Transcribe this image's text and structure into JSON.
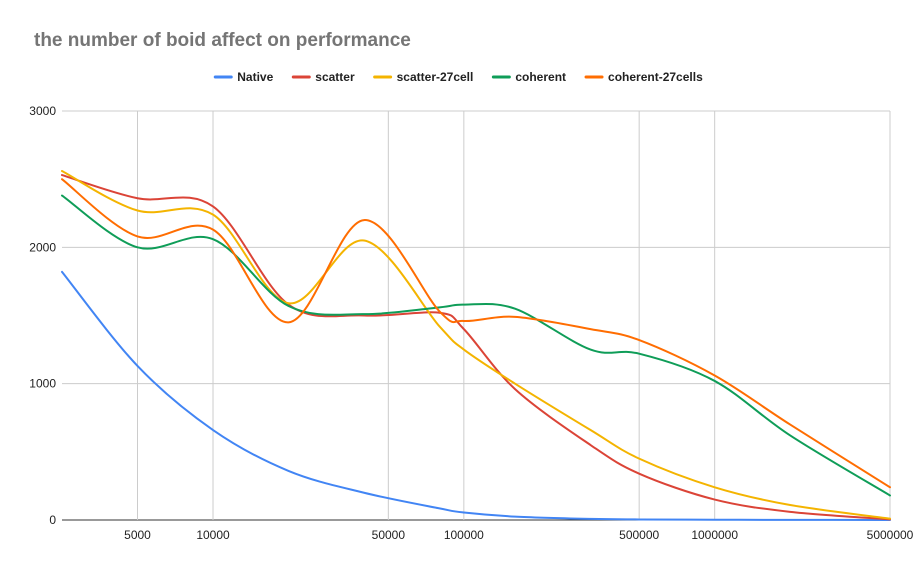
{
  "chart_data": {
    "type": "line",
    "title": "the number of boid affect on performance",
    "xlabel": "",
    "ylabel": "",
    "x_scale": "log",
    "x_ticks": [
      5000,
      10000,
      50000,
      100000,
      500000,
      1000000,
      5000000
    ],
    "x_tick_labels": [
      "5000",
      "10000",
      "50000",
      "100000",
      "500000",
      "1000000",
      "5000000"
    ],
    "y_ticks": [
      0,
      1000,
      2000,
      3000
    ],
    "y_tick_labels": [
      "0",
      "1000",
      "2000",
      "3000"
    ],
    "ylim": [
      0,
      3000
    ],
    "x": [
      2500,
      5000,
      10000,
      20000,
      40000,
      80000,
      100000,
      160000,
      320000,
      500000,
      1000000,
      2000000,
      5000000
    ],
    "grid": "horizontal",
    "legend_position": "top",
    "series": [
      {
        "name": "Native",
        "color": "#4285F4",
        "values": [
          1820,
          1130,
          660,
          360,
          200,
          85,
          55,
          25,
          8,
          4,
          2,
          1,
          0
        ]
      },
      {
        "name": "scatter",
        "color": "#DB4437",
        "values": [
          2530,
          2360,
          2300,
          1580,
          1500,
          1520,
          1400,
          960,
          550,
          340,
          150,
          60,
          5
        ]
      },
      {
        "name": "scatter-27cell",
        "color": "#F4B400",
        "values": [
          2560,
          2270,
          2240,
          1590,
          2050,
          1420,
          1250,
          1000,
          660,
          450,
          240,
          110,
          10
        ]
      },
      {
        "name": "coherent",
        "color": "#0F9D58",
        "values": [
          2380,
          2000,
          2060,
          1570,
          1510,
          1560,
          1580,
          1550,
          1250,
          1220,
          1020,
          620,
          180
        ]
      },
      {
        "name": "coherent-27cells",
        "color": "#FF6D01",
        "values": [
          2500,
          2080,
          2130,
          1450,
          2200,
          1530,
          1460,
          1490,
          1400,
          1320,
          1060,
          700,
          240
        ]
      }
    ]
  }
}
